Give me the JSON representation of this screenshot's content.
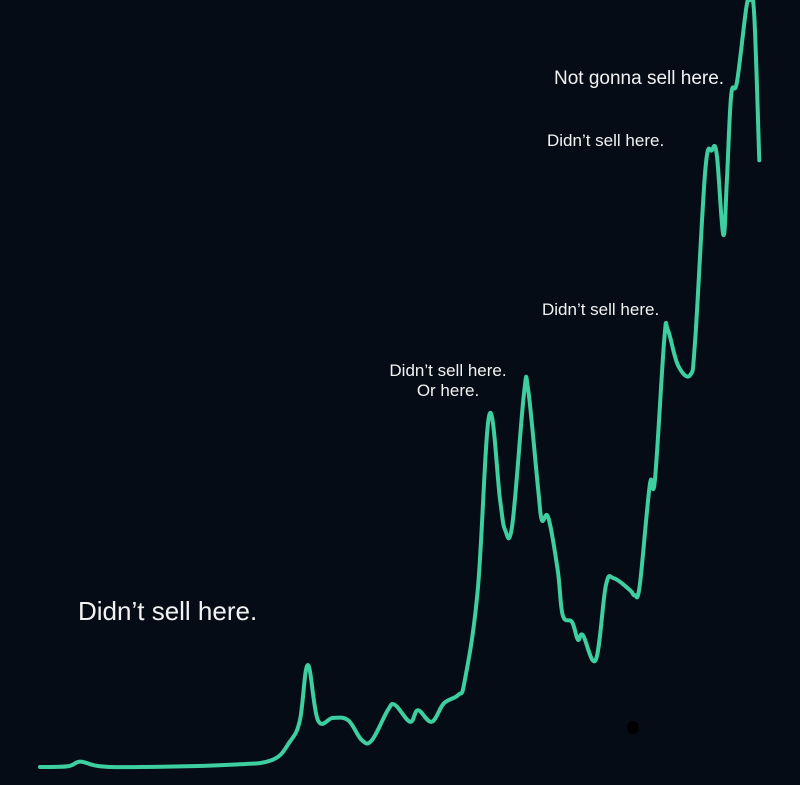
{
  "colors": {
    "background": "#060c16",
    "line": "#3ecfa0",
    "text": "#f2f2f2"
  },
  "annotations": {
    "first": "Didn’t sell here.",
    "second_line1": "Didn’t sell here.",
    "second_line2": "Or here.",
    "third": "Didn’t sell here.",
    "fourth": "Didn’t sell here.",
    "fifth": "Not gonna sell here."
  },
  "chart_data": {
    "type": "line",
    "title": "",
    "xlabel": "",
    "ylabel": "",
    "axes_visible": false,
    "grid": false,
    "xlim": [
      0,
      100
    ],
    "ylim": [
      0,
      100
    ],
    "series": [
      {
        "x": [
          0,
          3.9,
          5.6,
          8.3,
          13.9,
          26.4,
          32.2,
          34.7,
          36.1,
          37.2,
          38.6,
          40.7,
          42.8,
          44.7,
          46.1,
          48.3,
          49.3,
          51.4,
          52.5,
          54.4,
          56.1,
          58.1,
          59.0,
          60.8,
          62.4,
          63.9,
          64.6,
          65.6,
          67.2,
          67.8,
          69.2,
          69.7,
          70.6,
          71.9,
          72.6,
          73.9,
          74.7,
          75.4,
          77.2,
          78.6,
          79.7,
          81.9,
          82.6,
          83.3,
          84.7,
          85.4,
          86.7,
          87.2,
          88.6,
          90.3,
          91.0,
          92.4,
          93.3,
          94.0,
          94.9,
          95.4,
          96.0,
          96.8,
          98.1,
          98.6,
          99.2,
          99.9
        ],
        "y": [
          0,
          0.1,
          0.7,
          0.1,
          0,
          0.3,
          0.9,
          3.3,
          6.1,
          13.3,
          6.1,
          6.4,
          6.1,
          3.5,
          3.5,
          7.4,
          8.1,
          5.9,
          7.4,
          5.9,
          8.3,
          9.4,
          11.3,
          23.1,
          45.9,
          34.8,
          30.9,
          31.6,
          48.5,
          49.2,
          36.1,
          32.2,
          32.5,
          25.7,
          19.8,
          18.9,
          16.6,
          17.2,
          14.0,
          23.7,
          24.6,
          23.1,
          22.4,
          23.7,
          36.8,
          37.4,
          55.7,
          57.0,
          52.4,
          51.1,
          55.7,
          77.8,
          80.4,
          79.8,
          69.4,
          76.5,
          87.6,
          89.3,
          99.0,
          100,
          98.0,
          79.1
        ]
      }
    ]
  }
}
